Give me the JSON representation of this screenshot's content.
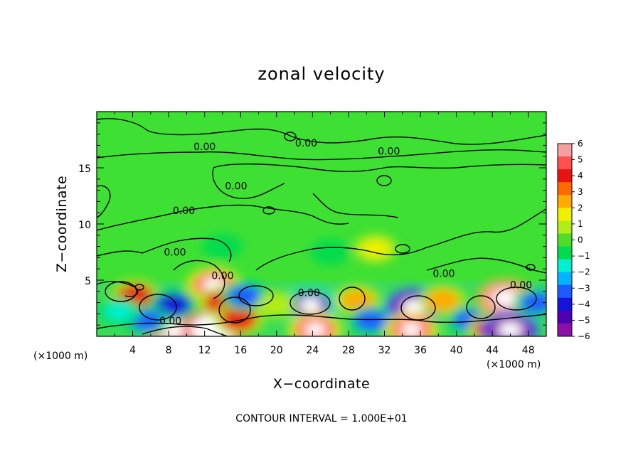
{
  "chart_data": {
    "type": "heatmap",
    "title": "zonal velocity",
    "xlabel": "X−coordinate",
    "ylabel": "Z−coordinate",
    "x_unit": "(×1000 m)",
    "note": "CONTOUR INTERVAL = 1.000E+01",
    "xlim": [
      0,
      50
    ],
    "ylim": [
      0,
      20
    ],
    "x_ticks": [
      "4",
      "8",
      "12",
      "16",
      "20",
      "24",
      "28",
      "32",
      "36",
      "40",
      "44",
      "48"
    ],
    "y_ticks": [
      "5",
      "10",
      "15"
    ],
    "colorbar": {
      "labels": [
        "6",
        "5",
        "4",
        "3",
        "2",
        "1",
        "0",
        "−1",
        "−2",
        "−3",
        "−4",
        "−5",
        "−6"
      ],
      "colors": [
        "#f4a0a0",
        "#ff5050",
        "#e81414",
        "#ff6a00",
        "#ffaa00",
        "#f0f000",
        "#b4ec18",
        "#50dc28",
        "#00dc50",
        "#00f0d0",
        "#00b4ff",
        "#1c5cff",
        "#1414dc",
        "#5000b4",
        "#8c10a8"
      ]
    },
    "contour_label": "0.00",
    "features": [
      {
        "x": 4.3,
        "z": 3.6,
        "v": 4
      },
      {
        "x": 8.5,
        "z": 0.6,
        "v": 6
      },
      {
        "x": 8.5,
        "z": 2.8,
        "v": -4
      },
      {
        "x": 13,
        "z": 4.6,
        "v": 5
      },
      {
        "x": 13,
        "z": 0.6,
        "v": 7
      },
      {
        "x": 14,
        "z": 3.0,
        "v": 4
      },
      {
        "x": 15.8,
        "z": 1.5,
        "v": 4
      },
      {
        "x": 16.5,
        "z": 3.6,
        "v": -3
      },
      {
        "x": 5.5,
        "z": 1.4,
        "v": -3
      },
      {
        "x": 23.8,
        "z": 2.8,
        "v": -5
      },
      {
        "x": 24.3,
        "z": 0.6,
        "v": 5
      },
      {
        "x": 29,
        "z": 3.2,
        "v": 3
      },
      {
        "x": 30.5,
        "z": 1.4,
        "v": -3
      },
      {
        "x": 35.3,
        "z": 2.6,
        "v": -6
      },
      {
        "x": 35,
        "z": 0.6,
        "v": 5
      },
      {
        "x": 38.5,
        "z": 3.2,
        "v": 3
      },
      {
        "x": 41.5,
        "z": 1.4,
        "v": -3
      },
      {
        "x": 45.5,
        "z": 3.4,
        "v": 6
      },
      {
        "x": 44,
        "z": 0.6,
        "v": 4
      },
      {
        "x": 46,
        "z": 0.6,
        "v": -6
      },
      {
        "x": 49,
        "z": 3.0,
        "v": -3
      },
      {
        "x": 20,
        "z": 2.8,
        "v": 1
      },
      {
        "x": 2.5,
        "z": 2.2,
        "v": -2
      },
      {
        "x": 26,
        "z": 7.5,
        "v": -1
      },
      {
        "x": 31,
        "z": 7.8,
        "v": 2
      },
      {
        "x": 14,
        "z": 8.0,
        "v": -1
      }
    ]
  }
}
